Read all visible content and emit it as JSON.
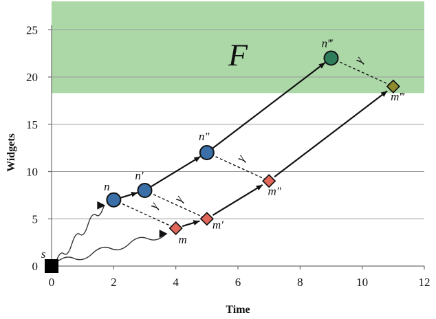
{
  "chart_data": {
    "type": "scatter",
    "title": "",
    "xlabel": "Time",
    "ylabel": "Widgets",
    "xlim": [
      0,
      12
    ],
    "ylim": [
      0,
      28
    ],
    "xticks": [
      0,
      2,
      4,
      6,
      8,
      10,
      12
    ],
    "yticks": [
      0,
      5,
      10,
      15,
      20,
      25
    ],
    "grid": "horizontal",
    "region": {
      "label": "F",
      "y_from": 18.3,
      "y_to": 28,
      "color": "#acd8a8"
    },
    "points": [
      {
        "id": "s",
        "label": "s",
        "x": 0,
        "y": 0,
        "shape": "square",
        "color": "#000000"
      },
      {
        "id": "n",
        "label": "n",
        "x": 2,
        "y": 7,
        "shape": "circle",
        "color": "#3a6fa8"
      },
      {
        "id": "n1",
        "label": "n′",
        "x": 3,
        "y": 8,
        "shape": "circle",
        "color": "#3a6fa8"
      },
      {
        "id": "n2",
        "label": "n″",
        "x": 5,
        "y": 12,
        "shape": "circle",
        "color": "#3a6fa8"
      },
      {
        "id": "n3",
        "label": "n‴",
        "x": 9,
        "y": 22,
        "shape": "circle",
        "color": "#2e7d5b"
      },
      {
        "id": "m",
        "label": "m",
        "x": 4,
        "y": 4,
        "shape": "diamond",
        "color": "#e0675a"
      },
      {
        "id": "m1",
        "label": "m′",
        "x": 5,
        "y": 5,
        "shape": "diamond",
        "color": "#e0675a"
      },
      {
        "id": "m2",
        "label": "m″",
        "x": 7,
        "y": 9,
        "shape": "diamond",
        "color": "#e0675a"
      },
      {
        "id": "m3",
        "label": "m‴",
        "x": 11,
        "y": 19,
        "shape": "diamond",
        "color": "#8e8a2e"
      }
    ],
    "solid_edges": [
      {
        "from": "n",
        "to": "n1"
      },
      {
        "from": "n1",
        "to": "n2"
      },
      {
        "from": "n2",
        "to": "n3"
      },
      {
        "from": "m",
        "to": "m1"
      },
      {
        "from": "m1",
        "to": "m2"
      },
      {
        "from": "m2",
        "to": "m3"
      }
    ],
    "dashed_edges": [
      {
        "from": "n",
        "to": "m",
        "label": ""
      },
      {
        "from": "n1",
        "to": "m1",
        "label": ""
      },
      {
        "from": "n2",
        "to": "m2",
        "label": ""
      },
      {
        "from": "n3",
        "to": "m3",
        "label": ""
      }
    ],
    "gamma_labels": [
      {
        "text": "γ",
        "x": 3.4,
        "y": 6.2
      },
      {
        "text": "γ",
        "x": 4.2,
        "y": 6.9
      },
      {
        "text": "γ",
        "x": 6.2,
        "y": 11.2
      },
      {
        "text": "γ",
        "x": 10.0,
        "y": 21.6
      }
    ],
    "squiggles": [
      {
        "from": "s",
        "to": "n"
      },
      {
        "from": "s",
        "to": "m"
      }
    ]
  }
}
